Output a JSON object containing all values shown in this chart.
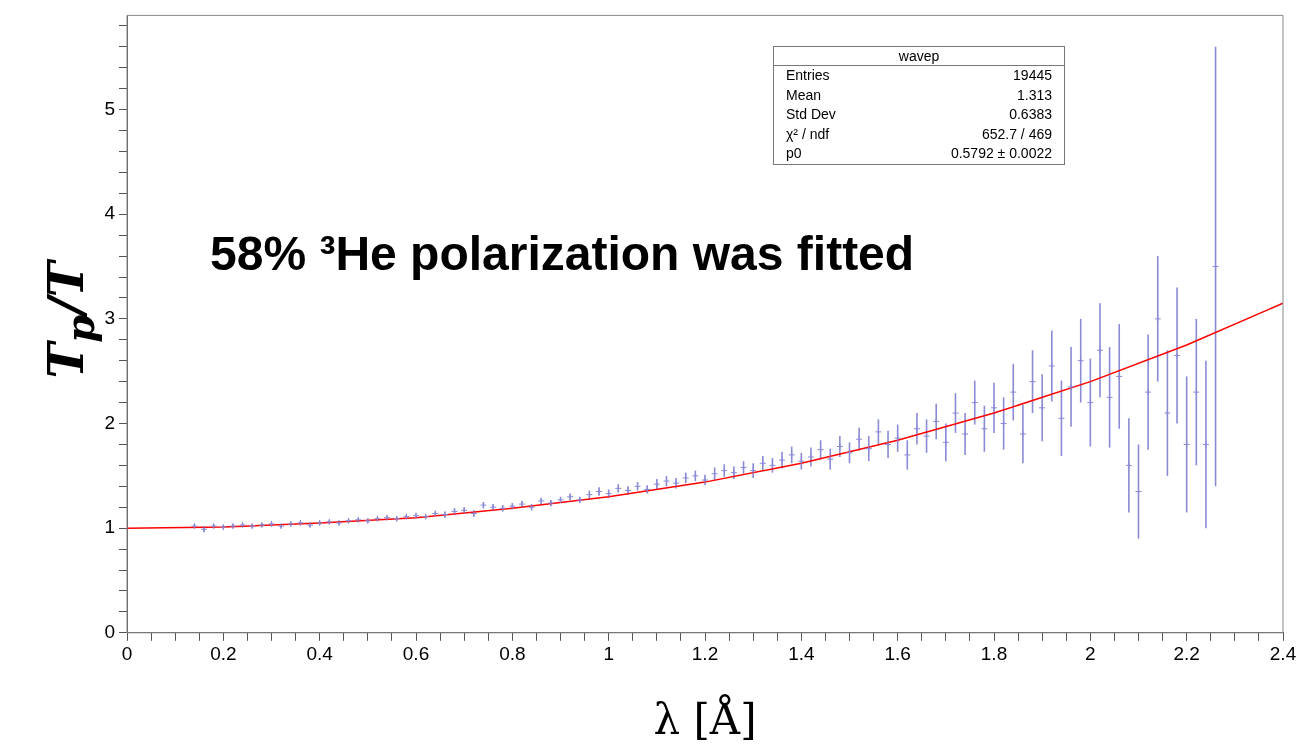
{
  "chart_data": {
    "type": "scatter",
    "xlabel": "λ [Å]",
    "ylabel": "T$_{p}$/T",
    "annotations": [
      "58% ³He polarization was fitted",
      "wavep",
      "Entries",
      "19445",
      "Mean",
      "1.313",
      "Std Dev",
      "0.6383",
      "χ² / ndf",
      "652.7 / 469",
      "p0",
      "0.5792 ± 0.0022"
    ],
    "xlim": [
      0,
      2.4
    ],
    "ylim": [
      0,
      5.9
    ],
    "xticks": [
      0,
      {
        "value": 0.05,
        "label": null
      },
      {
        "value": 0.1,
        "label": null
      },
      {
        "value": 0.15,
        "label": null
      },
      0.2,
      {
        "value": 0.25,
        "label": null
      },
      {
        "value": 0.3,
        "label": null
      },
      {
        "value": 0.35,
        "label": null
      },
      0.4,
      {
        "value": 0.45,
        "label": null
      },
      {
        "value": 0.5,
        "label": null
      },
      {
        "value": 0.55,
        "label": null
      },
      0.6,
      {
        "value": 0.65,
        "label": null
      },
      {
        "value": 0.7,
        "label": null
      },
      {
        "value": 0.75,
        "label": null
      },
      0.8,
      {
        "value": 0.85,
        "label": null
      },
      {
        "value": 0.9,
        "label": null
      },
      {
        "value": 0.95,
        "label": null
      },
      1,
      {
        "value": 1.05,
        "label": null
      },
      {
        "value": 1.1,
        "label": null
      },
      {
        "value": 1.15,
        "label": null
      },
      1.2,
      {
        "value": 1.25,
        "label": null
      },
      {
        "value": 1.3,
        "label": null
      },
      {
        "value": 1.35,
        "label": null
      },
      1.4,
      {
        "value": 1.45,
        "label": null
      },
      {
        "value": 1.5,
        "label": null
      },
      {
        "value": 1.55,
        "label": null
      },
      1.6,
      {
        "value": 1.65,
        "label": null
      },
      {
        "value": 1.7,
        "label": null
      },
      {
        "value": 1.75,
        "label": null
      },
      1.8,
      {
        "value": 1.85,
        "label": null
      },
      {
        "value": 1.9,
        "label": null
      },
      {
        "value": 1.95,
        "label": null
      },
      2,
      {
        "value": 2.05,
        "label": null
      },
      {
        "value": 2.1,
        "label": null
      },
      {
        "value": 2.15,
        "label": null
      },
      2.2,
      {
        "value": 2.25,
        "label": null
      },
      {
        "value": 2.3,
        "label": null
      },
      {
        "value": 2.35,
        "label": null
      },
      2.4
    ],
    "yticks": [
      0,
      {
        "value": 0.2,
        "label": null
      },
      {
        "value": 0.4,
        "label": null
      },
      {
        "value": 0.6,
        "label": null
      },
      {
        "value": 0.8,
        "label": null
      },
      1,
      {
        "value": 1.2,
        "label": null
      },
      {
        "value": 1.4,
        "label": null
      },
      {
        "value": 1.6,
        "label": null
      },
      {
        "value": 1.8,
        "label": null
      },
      2,
      {
        "value": 2.2,
        "label": null
      },
      {
        "value": 2.4,
        "label": null
      },
      {
        "value": 2.6,
        "label": null
      },
      {
        "value": 2.8,
        "label": null
      },
      3,
      {
        "value": 3.2,
        "label": null
      },
      {
        "value": 3.4,
        "label": null
      },
      {
        "value": 3.6,
        "label": null
      },
      {
        "value": 3.8,
        "label": null
      },
      4,
      {
        "value": 4.2,
        "label": null
      },
      {
        "value": 4.4,
        "label": null
      },
      {
        "value": 4.6,
        "label": null
      },
      {
        "value": 4.8,
        "label": null
      },
      5,
      {
        "value": 5.2,
        "label": null
      },
      {
        "value": 5.4,
        "label": null
      },
      {
        "value": 5.6,
        "label": null
      },
      {
        "value": 5.8,
        "label": null
      }
    ],
    "grid": false,
    "legend": false,
    "series": [
      {
        "marker": "cross",
        "color": "#8a8ad6",
        "x": [
          0.14,
          0.16,
          0.18,
          0.2,
          0.22,
          0.24,
          0.26,
          0.28,
          0.3,
          0.32,
          0.34,
          0.36,
          0.38,
          0.4,
          0.42,
          0.44,
          0.46,
          0.48,
          0.5,
          0.52,
          0.54,
          0.56,
          0.58,
          0.6,
          0.62,
          0.64,
          0.66,
          0.68,
          0.7,
          0.72,
          0.74,
          0.76,
          0.78,
          0.8,
          0.82,
          0.84,
          0.86,
          0.88,
          0.9,
          0.92,
          0.94,
          0.96,
          0.98,
          1,
          1.02,
          1.04,
          1.06,
          1.08,
          1.1,
          1.12,
          1.14,
          1.16,
          1.18,
          1.2,
          1.22,
          1.24,
          1.26,
          1.28,
          1.3,
          1.32,
          1.34,
          1.36,
          1.38,
          1.4,
          1.42,
          1.44,
          1.46,
          1.48,
          1.5,
          1.52,
          1.54,
          1.56,
          1.58,
          1.6,
          1.62,
          1.64,
          1.66,
          1.68,
          1.7,
          1.72,
          1.74,
          1.76,
          1.78,
          1.8,
          1.82,
          1.84,
          1.86,
          1.88,
          1.9,
          1.92,
          1.94,
          1.96,
          1.98,
          2,
          2.02,
          2.04,
          2.06,
          2.08,
          2.1,
          2.12,
          2.14,
          2.16,
          2.18,
          2.2,
          2.22,
          2.24,
          2.26
        ],
        "values": [
          1.02,
          0.99,
          1.02,
          1.01,
          1.02,
          1.03,
          1.02,
          1.03,
          1.04,
          1.02,
          1.04,
          1.05,
          1.03,
          1.05,
          1.06,
          1.05,
          1.07,
          1.08,
          1.07,
          1.09,
          1.1,
          1.09,
          1.11,
          1.12,
          1.11,
          1.14,
          1.13,
          1.16,
          1.17,
          1.14,
          1.22,
          1.2,
          1.19,
          1.21,
          1.23,
          1.2,
          1.26,
          1.24,
          1.27,
          1.3,
          1.27,
          1.32,
          1.35,
          1.33,
          1.38,
          1.36,
          1.4,
          1.37,
          1.42,
          1.45,
          1.43,
          1.48,
          1.5,
          1.46,
          1.52,
          1.55,
          1.53,
          1.58,
          1.55,
          1.62,
          1.6,
          1.65,
          1.7,
          1.64,
          1.68,
          1.75,
          1.66,
          1.78,
          1.72,
          1.85,
          1.76,
          1.92,
          1.8,
          1.86,
          1.7,
          1.95,
          1.88,
          2.02,
          1.82,
          2.1,
          1.9,
          2.2,
          1.95,
          2.15,
          2,
          2.3,
          1.9,
          2.4,
          2.15,
          2.55,
          2.05,
          2.35,
          2.6,
          2.2,
          2.7,
          2.25,
          2.45,
          1.6,
          1.35,
          2.3,
          3,
          2.1,
          2.65,
          1.8,
          2.3,
          1.8,
          3.5
        ],
        "errors": [
          0.02,
          0.03,
          0.02,
          0.02,
          0.02,
          0.02,
          0.02,
          0.02,
          0.02,
          0.02,
          0.02,
          0.02,
          0.02,
          0.02,
          0.02,
          0.02,
          0.02,
          0.02,
          0.02,
          0.02,
          0.02,
          0.02,
          0.02,
          0.02,
          0.02,
          0.02,
          0.03,
          0.03,
          0.03,
          0.03,
          0.03,
          0.03,
          0.03,
          0.03,
          0.03,
          0.03,
          0.03,
          0.03,
          0.03,
          0.03,
          0.03,
          0.04,
          0.04,
          0.04,
          0.04,
          0.04,
          0.04,
          0.04,
          0.05,
          0.05,
          0.05,
          0.05,
          0.05,
          0.05,
          0.06,
          0.06,
          0.06,
          0.06,
          0.07,
          0.07,
          0.07,
          0.08,
          0.08,
          0.08,
          0.09,
          0.09,
          0.1,
          0.1,
          0.1,
          0.11,
          0.12,
          0.12,
          0.13,
          0.13,
          0.14,
          0.15,
          0.16,
          0.17,
          0.18,
          0.19,
          0.2,
          0.21,
          0.22,
          0.24,
          0.25,
          0.27,
          0.28,
          0.3,
          0.32,
          0.34,
          0.36,
          0.38,
          0.4,
          0.42,
          0.45,
          0.48,
          0.5,
          0.45,
          0.45,
          0.55,
          0.6,
          0.6,
          0.65,
          0.65,
          0.7,
          0.8,
          2.1
        ]
      },
      {
        "type": "line",
        "color": "#ff0000",
        "x": [
          0,
          0.2,
          0.4,
          0.6,
          0.8,
          1,
          1.2,
          1.4,
          1.6,
          1.8,
          2,
          2.2,
          2.4
        ],
        "values": [
          1,
          1.01,
          1.05,
          1.1,
          1.19,
          1.3,
          1.44,
          1.62,
          1.84,
          2.1,
          2.4,
          2.75,
          3.15
        ]
      }
    ]
  }
}
